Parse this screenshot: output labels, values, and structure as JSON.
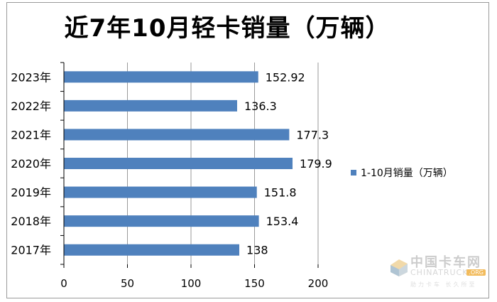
{
  "chart_data": {
    "type": "bar",
    "orientation": "horizontal",
    "title": "近7年10月轻卡销量（万辆）",
    "categories": [
      "2023年",
      "2022年",
      "2021年",
      "2020年",
      "2019年",
      "2018年",
      "2017年"
    ],
    "series": [
      {
        "name": "1-10月销量（万辆）",
        "values": [
          152.92,
          136.3,
          177.3,
          179.9,
          151.8,
          153.4,
          138
        ]
      }
    ],
    "data_labels": [
      "152.92",
      "136.3",
      "177.3",
      "179.9",
      "151.8",
      "153.4",
      "138"
    ],
    "xlim": [
      0,
      200
    ],
    "x_ticks": [
      "0",
      "50",
      "100",
      "150",
      "200"
    ],
    "grid": true,
    "legend_position": "right",
    "bar_color": "#4f81bd"
  },
  "watermark": {
    "cn": "中国卡车网",
    "en": "CHINATRUCK",
    "badge": ".ORG",
    "slogan": "助力卡车 长久所至"
  }
}
